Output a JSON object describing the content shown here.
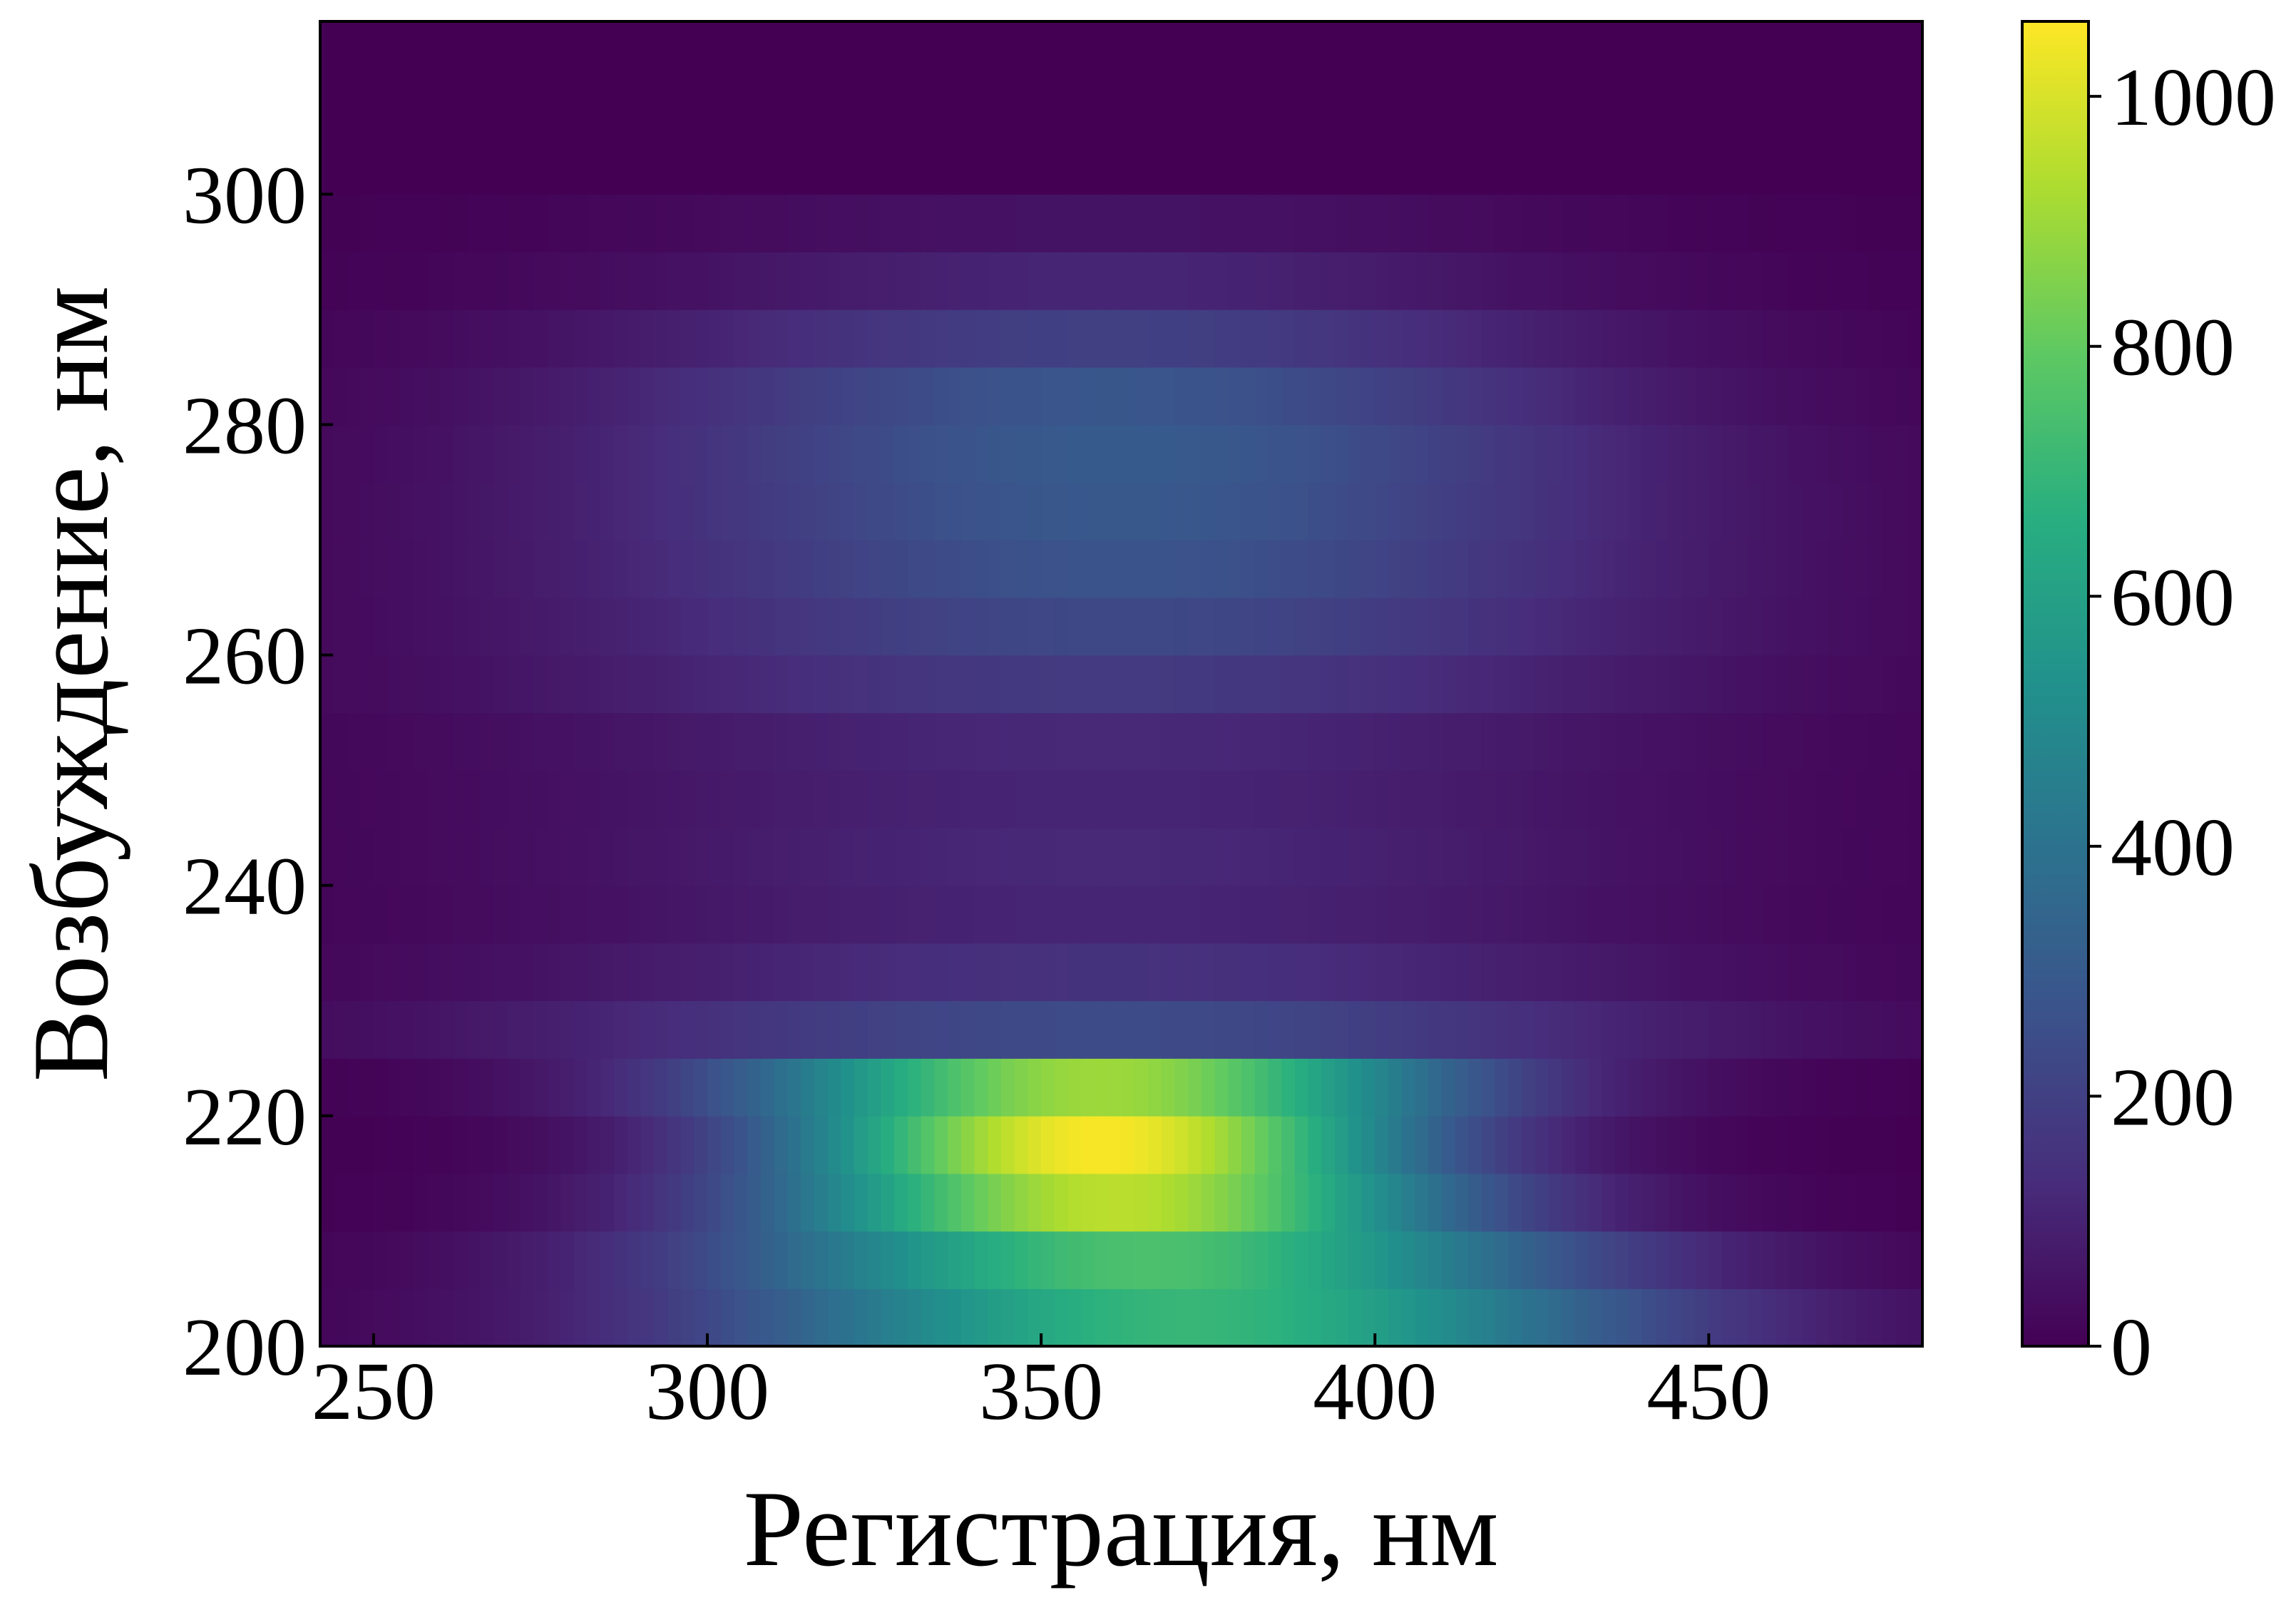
{
  "chart_data": {
    "type": "heatmap",
    "title": "",
    "xlabel": "Регистрация, нм",
    "ylabel": "Возбуждение, нм",
    "xlim": [
      242,
      482
    ],
    "ylim": [
      200,
      315
    ],
    "x_ticks": [
      250,
      300,
      350,
      400,
      450
    ],
    "y_ticks": [
      200,
      220,
      240,
      260,
      280,
      300
    ],
    "grid": false,
    "colormap": "viridis",
    "colorbar": {
      "range": [
        0,
        1060
      ],
      "ticks": [
        0,
        200,
        400,
        600,
        800,
        1000
      ],
      "placement": "right"
    },
    "rows": [
      {
        "ex": 202.5,
        "peak": 700,
        "center": 372,
        "sigma": 48
      },
      {
        "ex": 207.5,
        "peak": 750,
        "center": 366,
        "sigma": 44
      },
      {
        "ex": 212.5,
        "peak": 950,
        "center": 361,
        "sigma": 36
      },
      {
        "ex": 217.5,
        "peak": 1050,
        "center": 359,
        "sigma": 33
      },
      {
        "ex": 222.5,
        "peak": 900,
        "center": 359,
        "sigma": 37
      },
      {
        "ex": 227.5,
        "peak": 240,
        "center": 360,
        "sigma": 60
      },
      {
        "ex": 232.5,
        "peak": 150,
        "center": 360,
        "sigma": 60
      },
      {
        "ex": 237.5,
        "peak": 110,
        "center": 360,
        "sigma": 60
      },
      {
        "ex": 242.5,
        "peak": 120,
        "center": 360,
        "sigma": 60
      },
      {
        "ex": 247.5,
        "peak": 110,
        "center": 360,
        "sigma": 62
      },
      {
        "ex": 252.5,
        "peak": 120,
        "center": 360,
        "sigma": 62
      },
      {
        "ex": 257.5,
        "peak": 180,
        "center": 360,
        "sigma": 60
      },
      {
        "ex": 262.5,
        "peak": 230,
        "center": 362,
        "sigma": 58
      },
      {
        "ex": 267.5,
        "peak": 270,
        "center": 362,
        "sigma": 56
      },
      {
        "ex": 272.5,
        "peak": 290,
        "center": 362,
        "sigma": 55
      },
      {
        "ex": 277.5,
        "peak": 300,
        "center": 362,
        "sigma": 54
      },
      {
        "ex": 282.5,
        "peak": 280,
        "center": 360,
        "sigma": 52
      },
      {
        "ex": 287.5,
        "peak": 200,
        "center": 360,
        "sigma": 52
      },
      {
        "ex": 292.5,
        "peak": 110,
        "center": 360,
        "sigma": 50
      },
      {
        "ex": 297.5,
        "peak": 55,
        "center": 360,
        "sigma": 50
      },
      {
        "ex": 302.5,
        "peak": 0,
        "center": 360,
        "sigma": 50
      },
      {
        "ex": 307.5,
        "peak": 0,
        "center": 360,
        "sigma": 50
      },
      {
        "ex": 312.5,
        "peak": 0,
        "center": 360,
        "sigma": 50
      }
    ]
  }
}
